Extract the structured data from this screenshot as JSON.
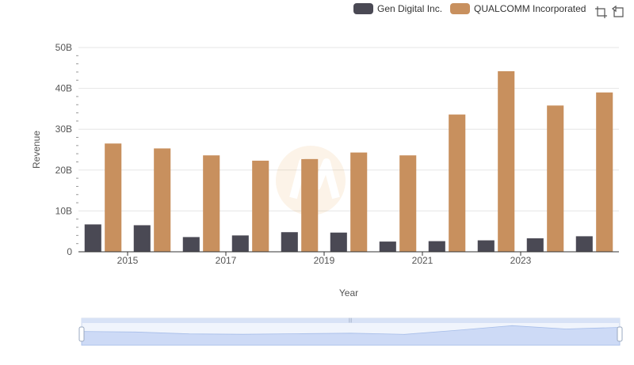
{
  "legend": {
    "items": [
      {
        "label": "Gen Digital Inc.",
        "color": "#4a4954"
      },
      {
        "label": "QUALCOMM Incorporated",
        "color": "#c8905e"
      }
    ]
  },
  "toolbar": {
    "icons": [
      "zoom-icon",
      "restore-icon"
    ]
  },
  "chart_data": {
    "type": "bar",
    "title": "",
    "xlabel": "Year",
    "ylabel": "Revenue",
    "ylim": [
      0,
      50
    ],
    "y_unit": "B",
    "y_ticks": [
      "0",
      "10B",
      "20B",
      "30B",
      "40B",
      "50B"
    ],
    "categories": [
      "2014",
      "2015",
      "2016",
      "2017",
      "2018",
      "2019",
      "2020",
      "2021",
      "2022",
      "2023",
      "2024"
    ],
    "x_tick_labels": [
      "2015",
      "2017",
      "2019",
      "2021",
      "2023"
    ],
    "grid": true,
    "legend_position": "top-right",
    "series": [
      {
        "name": "Gen Digital Inc.",
        "color": "#4a4954",
        "values": [
          6.7,
          6.5,
          3.6,
          4.0,
          4.8,
          4.7,
          2.5,
          2.6,
          2.8,
          3.3,
          3.8
        ]
      },
      {
        "name": "QUALCOMM Incorporated",
        "color": "#c8905e",
        "values": [
          26.5,
          25.3,
          23.6,
          22.3,
          22.7,
          24.3,
          23.6,
          33.6,
          44.2,
          35.8,
          39.0
        ]
      }
    ]
  }
}
